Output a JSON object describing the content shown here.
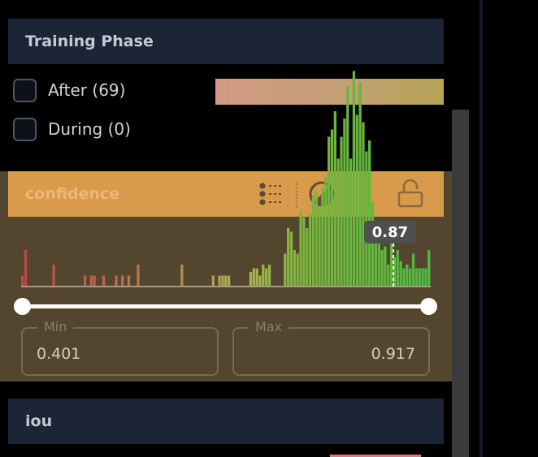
{
  "training_phase": {
    "title": "Training Phase",
    "options": [
      {
        "label": "After (69)",
        "checked": false
      },
      {
        "label": "During (0)",
        "checked": false
      }
    ],
    "bar_color_start": "#d49a86",
    "bar_color_end": "#b5a558"
  },
  "confidence": {
    "title": "confidence",
    "header_color": "#d99a4b",
    "panel_color": "#54462e",
    "icons": [
      "list-legend-icon",
      "contrast-icon",
      "lock-icon"
    ],
    "tooltip": "0.87",
    "min_label": "Min",
    "min_value": "0.401",
    "max_label": "Max",
    "max_value": "0.917",
    "histogram": {
      "range": [
        0.401,
        0.917
      ],
      "bin_counts": [
        3,
        10,
        0,
        0,
        0,
        0,
        0,
        0,
        0,
        0,
        6,
        0,
        0,
        0,
        0,
        0,
        0,
        0,
        0,
        0,
        3,
        0,
        3,
        3,
        0,
        0,
        3,
        0,
        0,
        0,
        3,
        0,
        3,
        0,
        3,
        0,
        0,
        6,
        0,
        0,
        0,
        0,
        0,
        0,
        0,
        0,
        0,
        0,
        0,
        0,
        0,
        6,
        0,
        0,
        0,
        0,
        0,
        0,
        0,
        0,
        0,
        3,
        0,
        3,
        3,
        3,
        3,
        0,
        0,
        0,
        0,
        0,
        0,
        4,
        5,
        5,
        3,
        6,
        5,
        6,
        0,
        0,
        0,
        0,
        9,
        16,
        15,
        10,
        9,
        21,
        19,
        16,
        20,
        25,
        26,
        22,
        27,
        30,
        41,
        43,
        48,
        35,
        41,
        46,
        55,
        35,
        59,
        47,
        56,
        45,
        37,
        40,
        23,
        15,
        15,
        10,
        11,
        6,
        13,
        8,
        10,
        7,
        5,
        6,
        5,
        9,
        5,
        5,
        5,
        5,
        10
      ],
      "highlight_value": 0.87
    }
  },
  "iou": {
    "title": "iou"
  }
}
